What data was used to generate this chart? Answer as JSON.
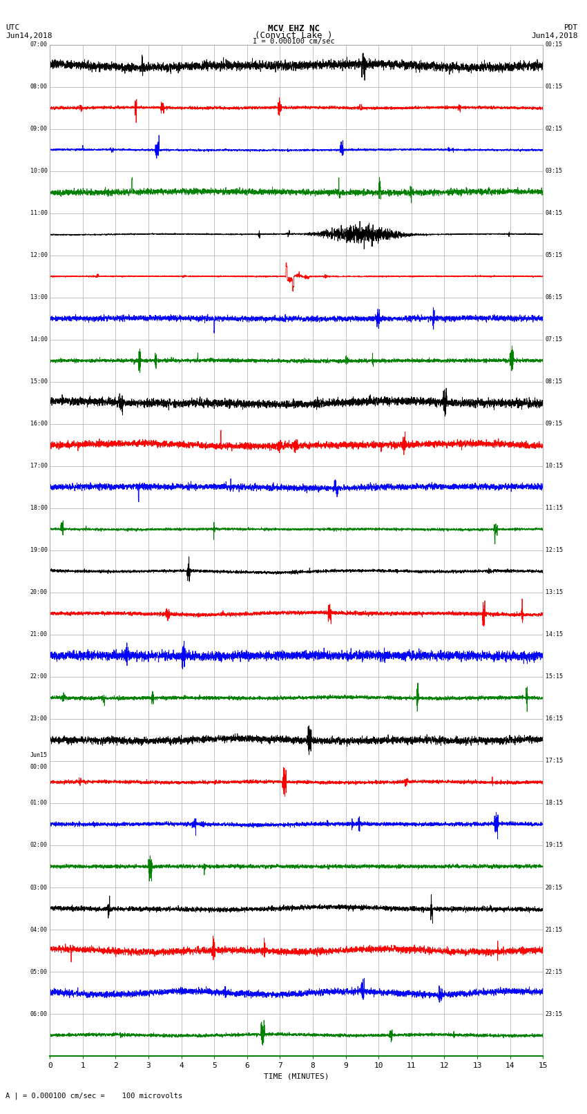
{
  "title_line1": "MCV EHZ NC",
  "title_line2": "(Convict Lake )",
  "title_line3": "I = 0.000100 cm/sec",
  "left_header1": "UTC",
  "left_header2": "Jun14,2018",
  "right_header1": "PDT",
  "right_header2": "Jun14,2018",
  "footer_note": "A | = 0.000100 cm/sec =    100 microvolts",
  "xlabel": "TIME (MINUTES)",
  "x_min": 0,
  "x_max": 15,
  "x_ticks": [
    0,
    1,
    2,
    3,
    4,
    5,
    6,
    7,
    8,
    9,
    10,
    11,
    12,
    13,
    14,
    15
  ],
  "utc_labels": [
    "07:00",
    "08:00",
    "09:00",
    "10:00",
    "11:00",
    "12:00",
    "13:00",
    "14:00",
    "15:00",
    "16:00",
    "17:00",
    "18:00",
    "19:00",
    "20:00",
    "21:00",
    "22:00",
    "23:00",
    "Jun15\n00:00",
    "01:00",
    "02:00",
    "03:00",
    "04:00",
    "05:00",
    "06:00"
  ],
  "pdt_labels": [
    "00:15",
    "01:15",
    "02:15",
    "03:15",
    "04:15",
    "05:15",
    "06:15",
    "07:15",
    "08:15",
    "09:15",
    "10:15",
    "11:15",
    "12:15",
    "13:15",
    "14:15",
    "15:15",
    "16:15",
    "17:15",
    "18:15",
    "19:15",
    "20:15",
    "21:15",
    "22:15",
    "23:15"
  ],
  "num_traces": 24,
  "trace_colors": [
    "black",
    "red",
    "blue",
    "green"
  ],
  "bg_color": "#ffffff",
  "grid_color": "#aaaaaa",
  "bottom_axis_color": "#008000",
  "axes_color": "#000000"
}
